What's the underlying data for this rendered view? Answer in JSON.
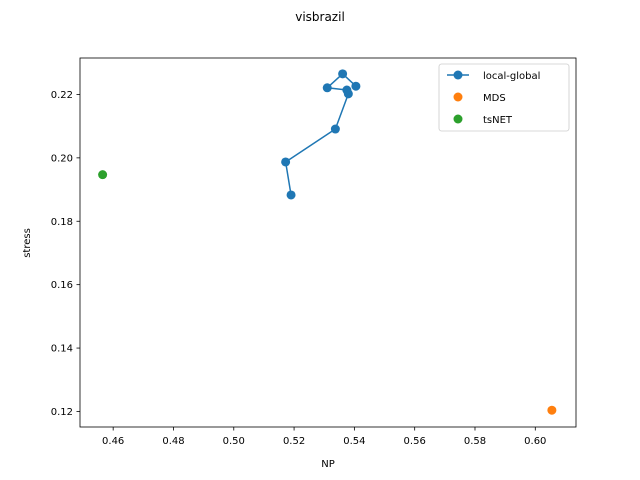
{
  "chart_data": {
    "type": "scatter",
    "title": "visbrazil",
    "xlabel": "NP",
    "ylabel": "stress",
    "xlim": [
      0.449,
      0.6135
    ],
    "ylim": [
      0.1151,
      0.2315
    ],
    "xticks": [
      0.46,
      0.48,
      0.5,
      0.52,
      0.54,
      0.56,
      0.58,
      0.6
    ],
    "yticks": [
      0.12,
      0.14,
      0.16,
      0.18,
      0.2,
      0.22
    ],
    "grid": false,
    "legend_position": "top-right",
    "series": [
      {
        "name": "local-global",
        "style": "line-marker",
        "color": "#1f77b4",
        "x": [
          0.519,
          0.5172,
          0.5337,
          0.538,
          0.5375,
          0.531,
          0.5361,
          0.5405
        ],
        "y": [
          0.1883,
          0.1987,
          0.2091,
          0.2202,
          0.2214,
          0.2221,
          0.2265,
          0.2226
        ]
      },
      {
        "name": "MDS",
        "style": "marker",
        "color": "#ff7f0e",
        "x": [
          0.6055
        ],
        "y": [
          0.1204
        ]
      },
      {
        "name": "tsNET",
        "style": "marker",
        "color": "#2ca02c",
        "x": [
          0.4565
        ],
        "y": [
          0.1947
        ]
      }
    ]
  }
}
